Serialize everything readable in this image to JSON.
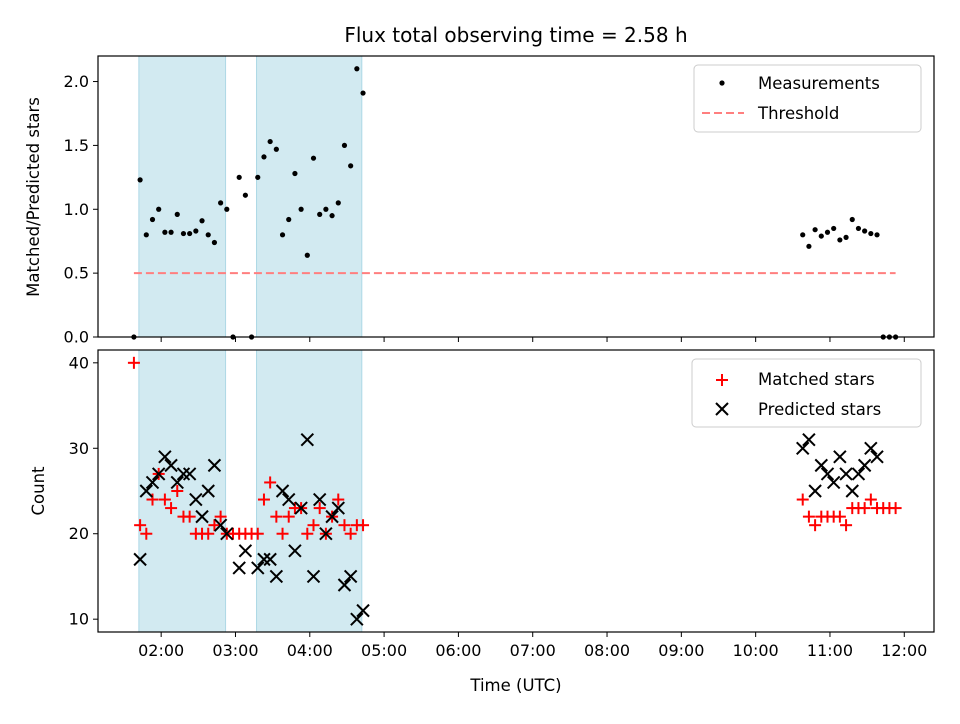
{
  "chart_data": [
    {
      "type": "scatter",
      "title": "Flux total observing time = 2.58 h",
      "xlabel": "",
      "ylabel": "Matched/Predicted stars",
      "x_unit": "hours UTC",
      "xlim": [
        "01:09",
        "12:24"
      ],
      "ylim": [
        0,
        2.2
      ],
      "yticks": [
        "0.0",
        "0.5",
        "1.0",
        "1.5",
        "2.0"
      ],
      "xticks": [
        "02:00",
        "03:00",
        "04:00",
        "05:00",
        "06:00",
        "07:00",
        "08:00",
        "09:00",
        "10:00",
        "11:00",
        "12:00"
      ],
      "grid": false,
      "legend_position": "top-right",
      "shaded_spans": [
        [
          "01:42",
          "02:52"
        ],
        [
          "03:17",
          "04:42"
        ]
      ],
      "shade_color": "#add8e6",
      "series": [
        {
          "name": "Measurements",
          "kind": "points",
          "color": "#000000",
          "points": [
            [
              "01:38",
              0.0
            ],
            [
              "01:43",
              1.23
            ],
            [
              "01:48",
              0.8
            ],
            [
              "01:53",
              0.92
            ],
            [
              "01:58",
              1.0
            ],
            [
              "02:03",
              0.82
            ],
            [
              "02:08",
              0.82
            ],
            [
              "02:13",
              0.96
            ],
            [
              "02:18",
              0.81
            ],
            [
              "02:23",
              0.81
            ],
            [
              "02:28",
              0.83
            ],
            [
              "02:33",
              0.91
            ],
            [
              "02:38",
              0.8
            ],
            [
              "02:43",
              0.74
            ],
            [
              "02:48",
              1.05
            ],
            [
              "02:53",
              1.0
            ],
            [
              "02:58",
              0.0
            ],
            [
              "03:03",
              1.25
            ],
            [
              "03:08",
              1.11
            ],
            [
              "03:13",
              0.0
            ],
            [
              "03:18",
              1.25
            ],
            [
              "03:23",
              1.41
            ],
            [
              "03:28",
              1.53
            ],
            [
              "03:33",
              1.47
            ],
            [
              "03:38",
              0.8
            ],
            [
              "03:43",
              0.92
            ],
            [
              "03:48",
              1.28
            ],
            [
              "03:53",
              1.0
            ],
            [
              "03:58",
              0.64
            ],
            [
              "04:03",
              1.4
            ],
            [
              "04:08",
              0.96
            ],
            [
              "04:13",
              1.0
            ],
            [
              "04:18",
              0.95
            ],
            [
              "04:23",
              1.05
            ],
            [
              "04:28",
              1.5
            ],
            [
              "04:33",
              1.34
            ],
            [
              "04:38",
              2.1
            ],
            [
              "04:43",
              1.91
            ],
            [
              "10:38",
              0.8
            ],
            [
              "10:43",
              0.71
            ],
            [
              "10:48",
              0.84
            ],
            [
              "10:53",
              0.79
            ],
            [
              "10:58",
              0.82
            ],
            [
              "11:03",
              0.85
            ],
            [
              "11:08",
              0.76
            ],
            [
              "11:13",
              0.78
            ],
            [
              "11:18",
              0.92
            ],
            [
              "11:23",
              0.85
            ],
            [
              "11:28",
              0.83
            ],
            [
              "11:33",
              0.81
            ],
            [
              "11:38",
              0.8
            ],
            [
              "11:43",
              0.0
            ],
            [
              "11:48",
              0.0
            ],
            [
              "11:53",
              0.0
            ]
          ]
        },
        {
          "name": "Threshold",
          "kind": "dashed-line",
          "color": "#ff7f7f",
          "y": 0.5,
          "x_range": [
            "01:38",
            "11:53"
          ]
        }
      ]
    },
    {
      "type": "scatter",
      "title": "",
      "xlabel": "Time (UTC)",
      "ylabel": "Count",
      "x_unit": "hours UTC",
      "xlim": [
        "01:09",
        "12:24"
      ],
      "ylim": [
        8.5,
        41.5
      ],
      "yticks": [
        "10",
        "20",
        "30",
        "40"
      ],
      "xticks": [
        "02:00",
        "03:00",
        "04:00",
        "05:00",
        "06:00",
        "07:00",
        "08:00",
        "09:00",
        "10:00",
        "11:00",
        "12:00"
      ],
      "grid": false,
      "legend_position": "top-right",
      "shaded_spans": [
        [
          "01:42",
          "02:52"
        ],
        [
          "03:17",
          "04:42"
        ]
      ],
      "shade_color": "#add8e6",
      "series": [
        {
          "name": "Matched stars",
          "kind": "plus-markers",
          "color": "#ff0000",
          "points": [
            [
              "01:38",
              40
            ],
            [
              "01:43",
              21
            ],
            [
              "01:48",
              20
            ],
            [
              "01:53",
              24
            ],
            [
              "01:58",
              27
            ],
            [
              "02:03",
              24
            ],
            [
              "02:08",
              23
            ],
            [
              "02:13",
              25
            ],
            [
              "02:18",
              22
            ],
            [
              "02:23",
              22
            ],
            [
              "02:28",
              20
            ],
            [
              "02:33",
              20
            ],
            [
              "02:38",
              20
            ],
            [
              "02:43",
              21
            ],
            [
              "02:48",
              22
            ],
            [
              "02:53",
              20
            ],
            [
              "02:58",
              20
            ],
            [
              "03:03",
              20
            ],
            [
              "03:08",
              20
            ],
            [
              "03:13",
              20
            ],
            [
              "03:18",
              20
            ],
            [
              "03:23",
              24
            ],
            [
              "03:28",
              26
            ],
            [
              "03:33",
              22
            ],
            [
              "03:38",
              20
            ],
            [
              "03:43",
              22
            ],
            [
              "03:48",
              23
            ],
            [
              "03:53",
              23
            ],
            [
              "03:58",
              20
            ],
            [
              "04:03",
              21
            ],
            [
              "04:08",
              23
            ],
            [
              "04:13",
              20
            ],
            [
              "04:18",
              22
            ],
            [
              "04:23",
              24
            ],
            [
              "04:28",
              21
            ],
            [
              "04:33",
              20
            ],
            [
              "04:38",
              21
            ],
            [
              "04:43",
              21
            ],
            [
              "10:38",
              24
            ],
            [
              "10:43",
              22
            ],
            [
              "10:48",
              21
            ],
            [
              "10:53",
              22
            ],
            [
              "10:58",
              22
            ],
            [
              "11:03",
              22
            ],
            [
              "11:08",
              22
            ],
            [
              "11:13",
              21
            ],
            [
              "11:18",
              23
            ],
            [
              "11:23",
              23
            ],
            [
              "11:28",
              23
            ],
            [
              "11:33",
              24
            ],
            [
              "11:38",
              23
            ],
            [
              "11:43",
              23
            ],
            [
              "11:48",
              23
            ],
            [
              "11:53",
              23
            ]
          ]
        },
        {
          "name": "Predicted stars",
          "kind": "x-markers",
          "color": "#000000",
          "points": [
            [
              "01:43",
              17
            ],
            [
              "01:48",
              25
            ],
            [
              "01:53",
              26
            ],
            [
              "01:58",
              27
            ],
            [
              "02:03",
              29
            ],
            [
              "02:08",
              28
            ],
            [
              "02:13",
              26
            ],
            [
              "02:18",
              27
            ],
            [
              "02:23",
              27
            ],
            [
              "02:28",
              24
            ],
            [
              "02:33",
              22
            ],
            [
              "02:38",
              25
            ],
            [
              "02:43",
              28
            ],
            [
              "02:48",
              21
            ],
            [
              "02:53",
              20
            ],
            [
              "03:03",
              16
            ],
            [
              "03:08",
              18
            ],
            [
              "03:18",
              16
            ],
            [
              "03:23",
              17
            ],
            [
              "03:28",
              17
            ],
            [
              "03:33",
              15
            ],
            [
              "03:38",
              25
            ],
            [
              "03:43",
              24
            ],
            [
              "03:48",
              18
            ],
            [
              "03:53",
              23
            ],
            [
              "03:58",
              31
            ],
            [
              "04:03",
              15
            ],
            [
              "04:08",
              24
            ],
            [
              "04:13",
              20
            ],
            [
              "04:18",
              22
            ],
            [
              "04:23",
              23
            ],
            [
              "04:28",
              14
            ],
            [
              "04:33",
              15
            ],
            [
              "04:38",
              10
            ],
            [
              "04:43",
              11
            ],
            [
              "10:38",
              30
            ],
            [
              "10:43",
              31
            ],
            [
              "10:48",
              25
            ],
            [
              "10:53",
              28
            ],
            [
              "10:58",
              27
            ],
            [
              "11:03",
              26
            ],
            [
              "11:08",
              29
            ],
            [
              "11:13",
              27
            ],
            [
              "11:18",
              25
            ],
            [
              "11:23",
              27
            ],
            [
              "11:28",
              28
            ],
            [
              "11:33",
              30
            ],
            [
              "11:38",
              29
            ]
          ]
        }
      ]
    }
  ]
}
